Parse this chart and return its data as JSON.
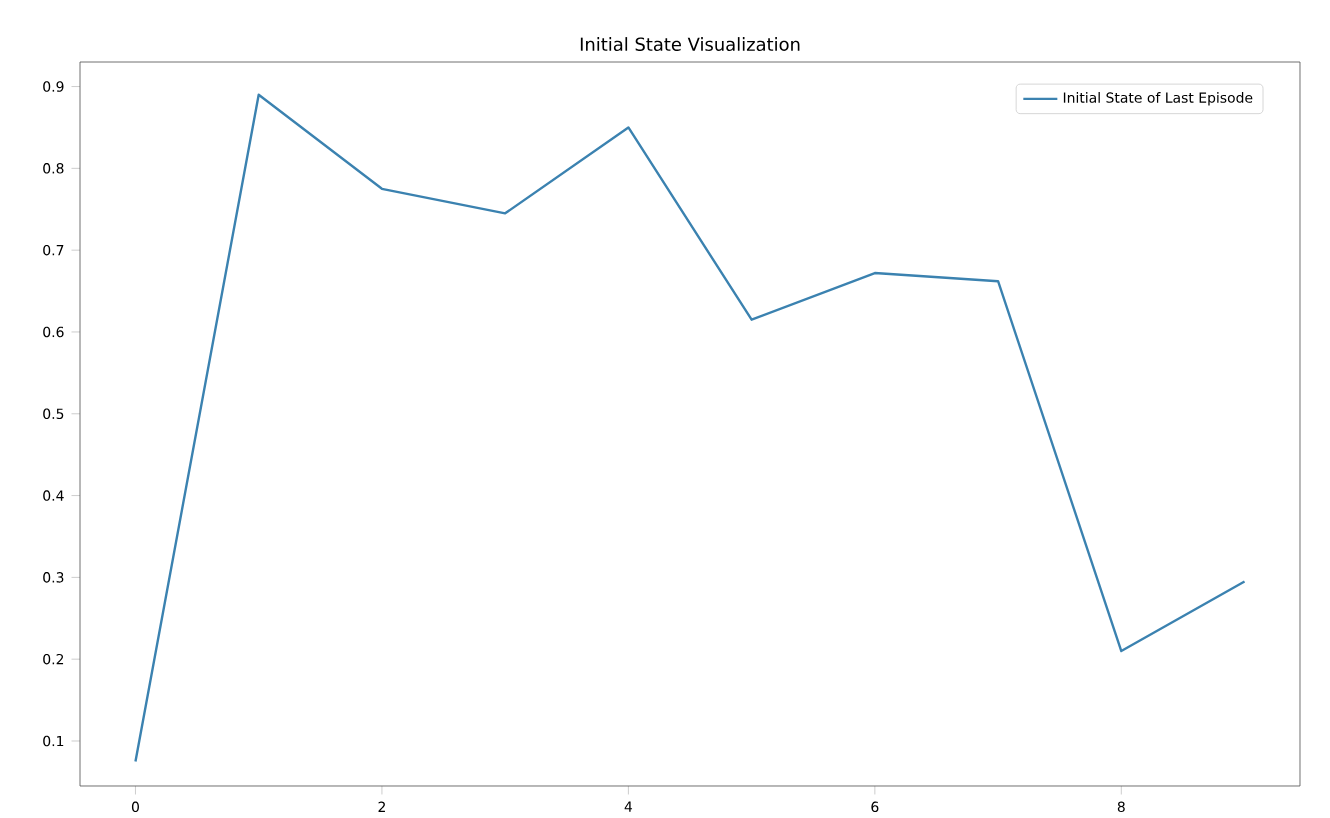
{
  "chart_data": {
    "type": "line",
    "title": "Initial State Visualization",
    "x": [
      0,
      1,
      2,
      3,
      4,
      5,
      6,
      7,
      8,
      9
    ],
    "series": [
      {
        "name": "Initial State of Last Episode",
        "color": "#3b82b0",
        "values": [
          0.075,
          0.89,
          0.775,
          0.745,
          0.85,
          0.615,
          0.672,
          0.662,
          0.21,
          0.295
        ]
      }
    ],
    "xlim": [
      -0.45,
      9.45
    ],
    "ylim": [
      0.045,
      0.93
    ],
    "xticks": [
      0,
      2,
      4,
      6,
      8
    ],
    "yticks": [
      0.1,
      0.2,
      0.3,
      0.4,
      0.5,
      0.6,
      0.7,
      0.8,
      0.9
    ],
    "legend": "top right",
    "grid": false
  }
}
